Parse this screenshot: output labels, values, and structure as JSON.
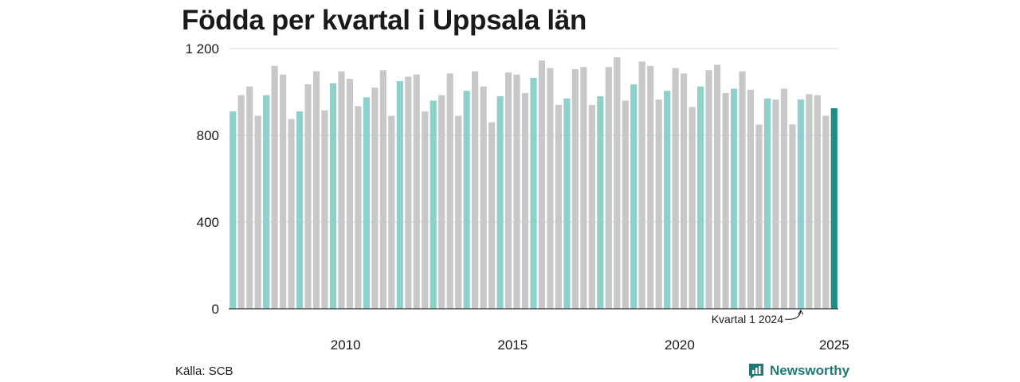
{
  "title": "Födda per kvartal i Uppsala län",
  "source": "Källa: SCB",
  "brand": {
    "name": "Newsworthy",
    "icon": "newsworthy-logo-icon"
  },
  "colors": {
    "q1": "#8dd1cc",
    "other": "#c8c8c8",
    "latest": "#1a8f86",
    "grid": "#d8d8d8",
    "axis": "#333333",
    "brand": "#1d7a74"
  },
  "chart_data": {
    "type": "bar",
    "title": "Födda per kvartal i Uppsala län",
    "xlabel": "",
    "ylabel": "",
    "ylim": [
      0,
      1200
    ],
    "y_ticks": [
      0,
      400,
      800,
      1200
    ],
    "y_tick_labels": [
      "0",
      "400",
      "800",
      "1 200"
    ],
    "x_tick_labels": [
      "2010",
      "2015",
      "2020",
      "2025"
    ],
    "grid": true,
    "highlight": "Kvartal 1 of each year highlighted; latest quarter in dark teal",
    "annotation": {
      "text": "Kvartal 1 2024",
      "target": "2024 Q1"
    },
    "categories": [
      "2007 Q1",
      "2007 Q2",
      "2007 Q3",
      "2007 Q4",
      "2008 Q1",
      "2008 Q2",
      "2008 Q3",
      "2008 Q4",
      "2009 Q1",
      "2009 Q2",
      "2009 Q3",
      "2009 Q4",
      "2010 Q1",
      "2010 Q2",
      "2010 Q3",
      "2010 Q4",
      "2011 Q1",
      "2011 Q2",
      "2011 Q3",
      "2011 Q4",
      "2012 Q1",
      "2012 Q2",
      "2012 Q3",
      "2012 Q4",
      "2013 Q1",
      "2013 Q2",
      "2013 Q3",
      "2013 Q4",
      "2014 Q1",
      "2014 Q2",
      "2014 Q3",
      "2014 Q4",
      "2015 Q1",
      "2015 Q2",
      "2015 Q3",
      "2015 Q4",
      "2016 Q1",
      "2016 Q2",
      "2016 Q3",
      "2016 Q4",
      "2017 Q1",
      "2017 Q2",
      "2017 Q3",
      "2017 Q4",
      "2018 Q1",
      "2018 Q2",
      "2018 Q3",
      "2018 Q4",
      "2019 Q1",
      "2019 Q2",
      "2019 Q3",
      "2019 Q4",
      "2020 Q1",
      "2020 Q2",
      "2020 Q3",
      "2020 Q4",
      "2021 Q1",
      "2021 Q2",
      "2021 Q3",
      "2021 Q4",
      "2022 Q1",
      "2022 Q2",
      "2022 Q3",
      "2022 Q4",
      "2023 Q1",
      "2023 Q2",
      "2023 Q3",
      "2023 Q4",
      "2024 Q1",
      "2024 Q2",
      "2024 Q3",
      "2024 Q4",
      "2025 Q1"
    ],
    "values": [
      910,
      985,
      1025,
      890,
      985,
      1120,
      1080,
      875,
      910,
      1035,
      1095,
      915,
      1040,
      1095,
      1060,
      935,
      975,
      1020,
      1100,
      890,
      1050,
      1070,
      1080,
      910,
      960,
      985,
      1085,
      890,
      1005,
      1095,
      1025,
      860,
      980,
      1090,
      1080,
      995,
      1065,
      1145,
      1110,
      940,
      970,
      1105,
      1115,
      940,
      980,
      1115,
      1160,
      960,
      1035,
      1140,
      1120,
      965,
      1005,
      1110,
      1085,
      930,
      1025,
      1100,
      1125,
      995,
      1015,
      1095,
      1010,
      850,
      970,
      965,
      1015,
      850,
      965,
      990,
      985,
      890,
      925
    ]
  }
}
